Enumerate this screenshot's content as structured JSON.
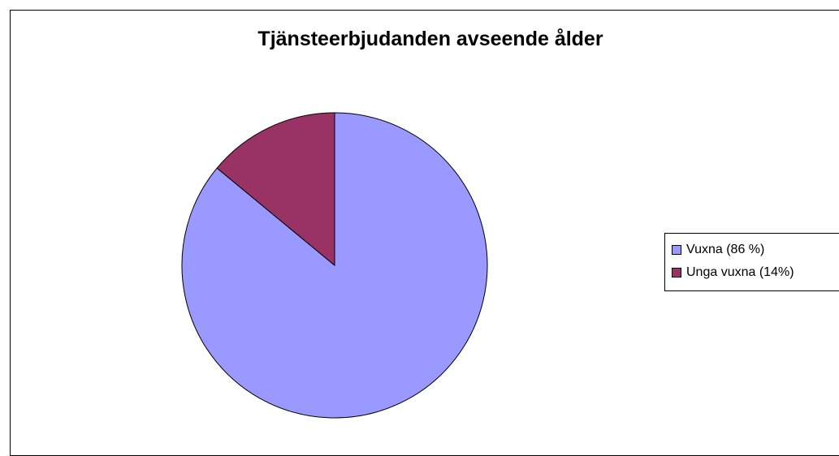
{
  "chart_data": {
    "type": "pie",
    "title": "Tjänsteerbjudanden avseende ålder",
    "categories": [
      "Vuxna (86 %)",
      "Unga vuxna (14%)"
    ],
    "values": [
      86,
      14
    ],
    "colors": [
      "#9999ff",
      "#993366"
    ],
    "legend": {
      "position": "right",
      "entries": [
        "Vuxna (86 %)",
        "Unga vuxna (14%)"
      ]
    },
    "start_angle": "12 o'clock",
    "direction": "clockwise, first slice starting at 12 o'clock"
  }
}
